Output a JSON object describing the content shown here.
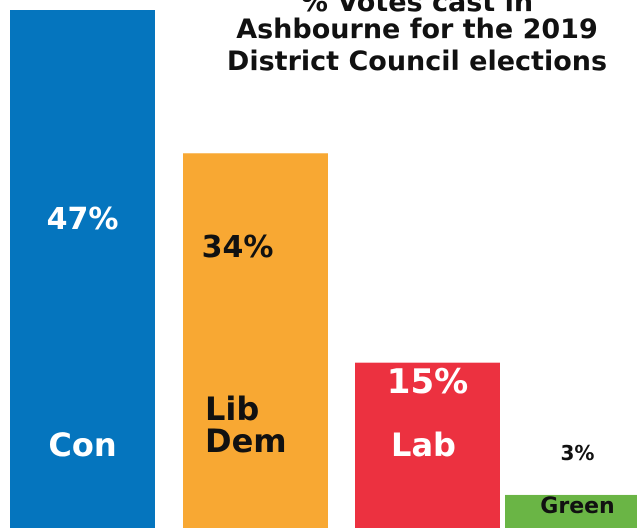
{
  "chart_data": {
    "type": "bar",
    "title_lines": [
      "% Votes cast in",
      "Ashbourne for the 2019",
      "District Council elections"
    ],
    "categories": [
      "Con",
      "Lib Dem",
      "Lab",
      "Green"
    ],
    "label_lines": [
      [
        "Con"
      ],
      [
        "Lib",
        "Dem"
      ],
      [
        "Lab"
      ],
      [
        "Green"
      ]
    ],
    "values": [
      47,
      34,
      15,
      3
    ],
    "value_labels": [
      "47%",
      "34%",
      "15%",
      "3%"
    ],
    "colors": [
      "#0575BE",
      "#F8A833",
      "#EC3140",
      "#6AB545"
    ],
    "text_colors": [
      "#ffffff",
      "#111111",
      "#ffffff",
      "#111111"
    ],
    "ylim": [
      0,
      47
    ],
    "grid": false,
    "legend": "none"
  }
}
